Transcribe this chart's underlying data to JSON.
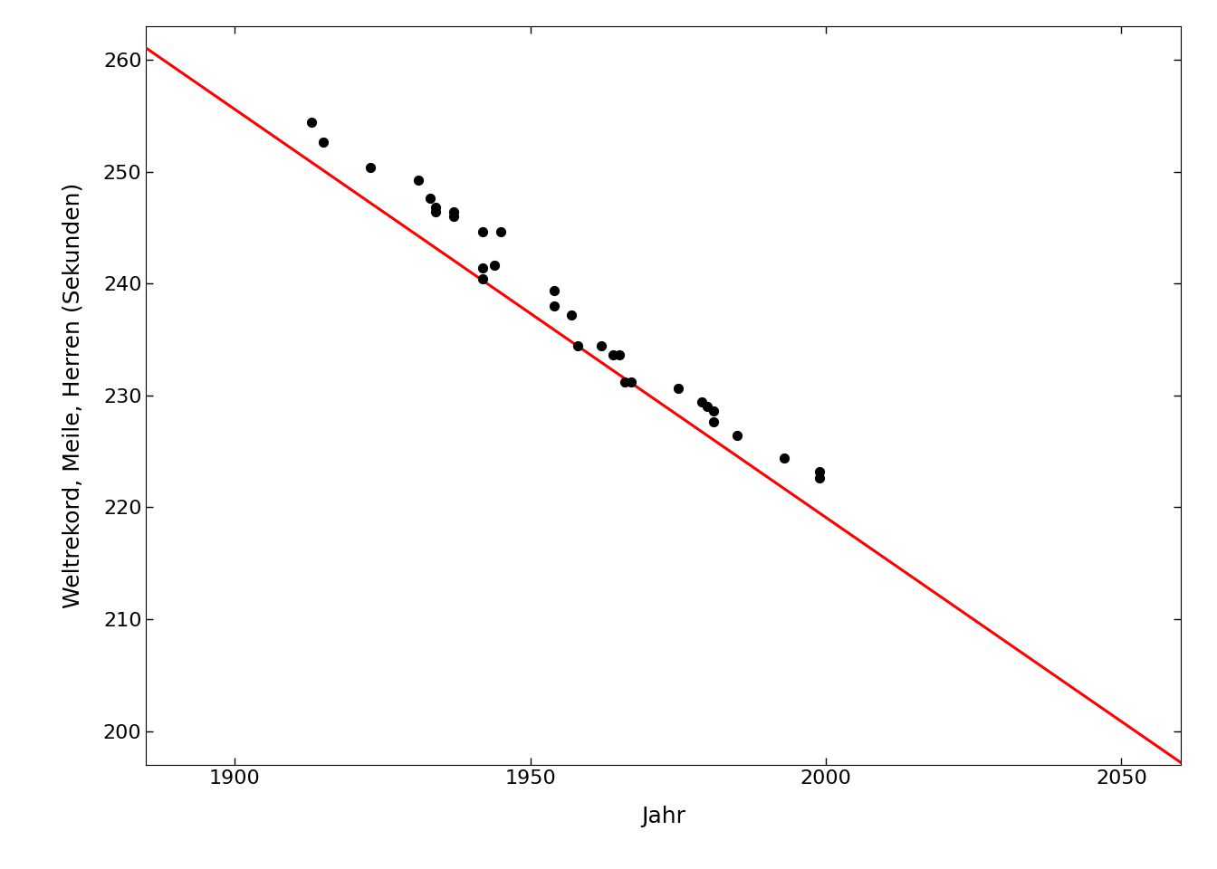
{
  "title": "",
  "xlabel": "Jahr",
  "ylabel": "Weltrekord, Meile, Herren (Sekunden)",
  "xlim": [
    1885,
    2060
  ],
  "ylim": [
    197,
    263
  ],
  "yticks": [
    200,
    210,
    220,
    230,
    240,
    250,
    260
  ],
  "xticks": [
    1900,
    1950,
    2000,
    2050
  ],
  "scatter_points": [
    [
      1913,
      254.4
    ],
    [
      1915,
      252.6
    ],
    [
      1923,
      250.4
    ],
    [
      1931,
      249.2
    ],
    [
      1933,
      247.6
    ],
    [
      1934,
      246.8
    ],
    [
      1934,
      246.4
    ],
    [
      1937,
      246.4
    ],
    [
      1937,
      246.0
    ],
    [
      1942,
      244.6
    ],
    [
      1942,
      241.4
    ],
    [
      1942,
      240.4
    ],
    [
      1944,
      241.6
    ],
    [
      1945,
      244.6
    ],
    [
      1954,
      239.4
    ],
    [
      1954,
      238.0
    ],
    [
      1957,
      237.2
    ],
    [
      1958,
      234.4
    ],
    [
      1962,
      234.4
    ],
    [
      1964,
      233.6
    ],
    [
      1965,
      233.6
    ],
    [
      1966,
      231.2
    ],
    [
      1967,
      231.2
    ],
    [
      1975,
      230.6
    ],
    [
      1979,
      229.4
    ],
    [
      1980,
      229.0
    ],
    [
      1981,
      228.6
    ],
    [
      1981,
      227.6
    ],
    [
      1985,
      226.4
    ],
    [
      1993,
      224.4
    ],
    [
      1999,
      223.2
    ],
    [
      1999,
      222.6
    ]
  ],
  "line_color": "#FF0000",
  "scatter_color": "#000000",
  "scatter_size": 50,
  "line_slope": -0.3647,
  "line_intercept": 948.5,
  "line_x_start": 1885,
  "line_x_end": 2060,
  "background_color": "#FFFFFF",
  "axis_label_fontsize": 18,
  "tick_fontsize": 16,
  "line_linewidth": 2.2
}
